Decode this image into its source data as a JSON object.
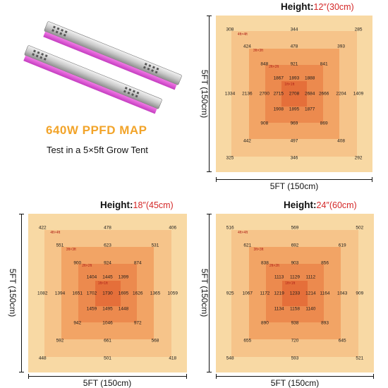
{
  "product": {
    "title": "640W PPFD MAP",
    "subtitle": "Test in a 5×5ft Grow Tent",
    "image_alt": "LED grow light bars"
  },
  "axis_labels": {
    "x": "5FT (150cm)",
    "y": "5FT (150cm)"
  },
  "colors": {
    "level1": "#f8d9a4",
    "level2": "#f6c48a",
    "level3": "#f2a465",
    "level4": "#ec8a4e",
    "level5": "#e56f3a",
    "size_label": "#b0241a",
    "height_value": "#d42828",
    "title_orange": "#f2a42a"
  },
  "maps": [
    {
      "id": "12in",
      "height_label": "Height:",
      "height_value": "12″(30cm)",
      "size_labels": [
        "4ft×4ft",
        "3ft×3ft",
        "2ft×2ft",
        "1ft×1ft"
      ],
      "rows": [
        [
          "308",
          "344",
          "285"
        ],
        [
          "424",
          "478",
          "393"
        ],
        [
          "848",
          "921",
          "841"
        ],
        [
          "1867",
          "1893",
          "1888"
        ],
        [
          "1334",
          "2136",
          "2700",
          "2715",
          "2708",
          "2684",
          "2666",
          "2204",
          "1409"
        ],
        [
          "1908",
          "1895",
          "1877"
        ],
        [
          "908",
          "969",
          "869"
        ],
        [
          "442",
          "497",
          "408"
        ],
        [
          "325",
          "346",
          "292"
        ]
      ]
    },
    {
      "id": "18in",
      "height_label": "Height:",
      "height_value": "18″(45cm)",
      "size_labels": [
        "4ft×4ft",
        "3ft×3ft",
        "2ft×2ft",
        "1ft×1ft"
      ],
      "rows": [
        [
          "422",
          "478",
          "406"
        ],
        [
          "551",
          "623",
          "531"
        ],
        [
          "900",
          "924",
          "874"
        ],
        [
          "1404",
          "1445",
          "1399"
        ],
        [
          "1082",
          "1394",
          "1651",
          "1702",
          "1730",
          "1695",
          "1626",
          "1365",
          "1059"
        ],
        [
          "1459",
          "1495",
          "1448"
        ],
        [
          "942",
          "1046",
          "972"
        ],
        [
          "592",
          "661",
          "568"
        ],
        [
          "448",
          "501",
          "418"
        ]
      ]
    },
    {
      "id": "24in",
      "height_label": "Height:",
      "height_value": "24″(60cm)",
      "size_labels": [
        "4ft×4ft",
        "3ft×3ft",
        "2ft×2ft",
        "1ft×1ft"
      ],
      "rows": [
        [
          "516",
          "569",
          "502"
        ],
        [
          "621",
          "692",
          "619"
        ],
        [
          "838",
          "903",
          "856"
        ],
        [
          "1113",
          "1129",
          "1112"
        ],
        [
          "925",
          "1067",
          "1172",
          "1219",
          "1233",
          "1214",
          "1164",
          "1043",
          "909"
        ],
        [
          "1134",
          "1158",
          "1140"
        ],
        [
          "890",
          "938",
          "893"
        ],
        [
          "655",
          "720",
          "645"
        ],
        [
          "548",
          "593",
          "521"
        ]
      ]
    }
  ]
}
